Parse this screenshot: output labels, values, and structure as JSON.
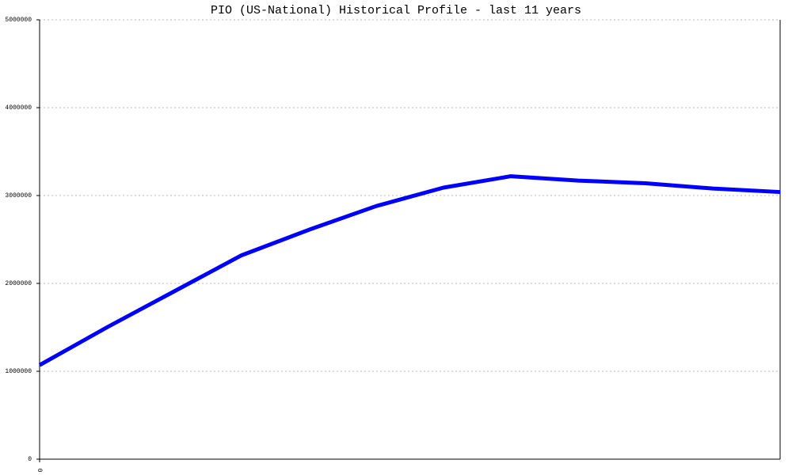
{
  "chart_data": {
    "type": "line",
    "title": "PIO (US-National) Historical Profile - last 11 years",
    "categories": [
      "0",
      null,
      null,
      null,
      null,
      null,
      null,
      null,
      null,
      null,
      null,
      null
    ],
    "series": [
      {
        "name": "PIO",
        "color": "#0000ff",
        "values": [
          1070000,
          1500000,
          1910000,
          2320000,
          2610000,
          2880000,
          3090000,
          3220000,
          3170000,
          3140000,
          3080000,
          3040000
        ]
      }
    ],
    "ylim": [
      0,
      5000000
    ],
    "yticks": [
      0,
      1000000,
      2000000,
      3000000,
      4000000,
      5000000
    ],
    "grid": true
  }
}
